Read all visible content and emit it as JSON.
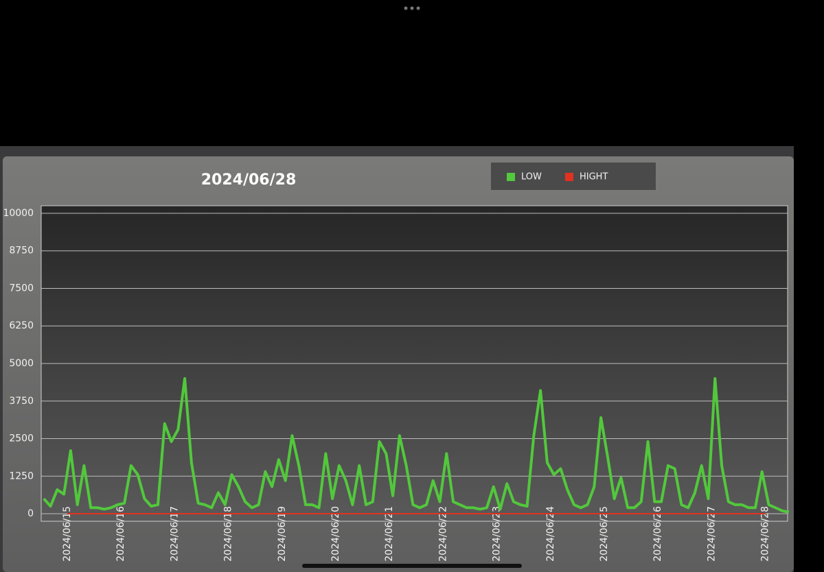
{
  "chart_data": {
    "type": "line",
    "title": "2024/06/28",
    "categories": [
      "2024/06/15",
      "2024/06/16",
      "2024/06/17",
      "2024/06/18",
      "2024/06/19",
      "2024/06/20",
      "2024/06/21",
      "2024/06/22",
      "2024/06/23",
      "2024/06/24",
      "2024/06/25",
      "2024/06/26",
      "2024/06/27",
      "2024/06/28"
    ],
    "series": [
      {
        "name": "LOW",
        "color": "#52c83c",
        "values": [
          [
            500,
            250,
            800,
            650,
            2100,
            300,
            1600,
            200
          ],
          [
            200,
            150,
            200,
            300,
            350,
            1600,
            1300,
            500
          ],
          [
            250,
            300,
            3000,
            2400,
            2800,
            4500,
            1700,
            350
          ],
          [
            300,
            200,
            700,
            300,
            1300,
            900,
            400,
            200
          ],
          [
            300,
            1400,
            900,
            1800,
            1100,
            2600,
            1600,
            300
          ],
          [
            300,
            200,
            2000,
            500,
            1600,
            1100,
            300,
            1600
          ],
          [
            300,
            400,
            2400,
            2000,
            600,
            2600,
            1600,
            300
          ],
          [
            200,
            300,
            1100,
            400,
            2000,
            400,
            300,
            200
          ],
          [
            200,
            150,
            200,
            900,
            150,
            1000,
            400,
            300
          ],
          [
            250,
            2600,
            4100,
            1700,
            1300,
            1500,
            800,
            300
          ],
          [
            200,
            300,
            900,
            3200,
            1900,
            500,
            1200,
            200
          ],
          [
            200,
            400,
            2400,
            400,
            400,
            1600,
            1500,
            300
          ],
          [
            200,
            700,
            1600,
            500,
            4500,
            1600,
            400,
            300
          ],
          [
            300,
            200,
            200,
            1400,
            300,
            200,
            100,
            50
          ]
        ]
      },
      {
        "name": "HIGHT",
        "color": "#e2321f",
        "values": [
          0,
          0,
          0,
          0,
          0,
          0,
          0,
          0,
          0,
          0,
          0,
          0,
          0,
          0
        ]
      }
    ],
    "ylim": [
      -250,
      10250
    ],
    "yticks": [
      0,
      1250,
      2500,
      3750,
      5000,
      6250,
      7500,
      8750,
      10000
    ],
    "grid": true,
    "legend": "top-right"
  }
}
